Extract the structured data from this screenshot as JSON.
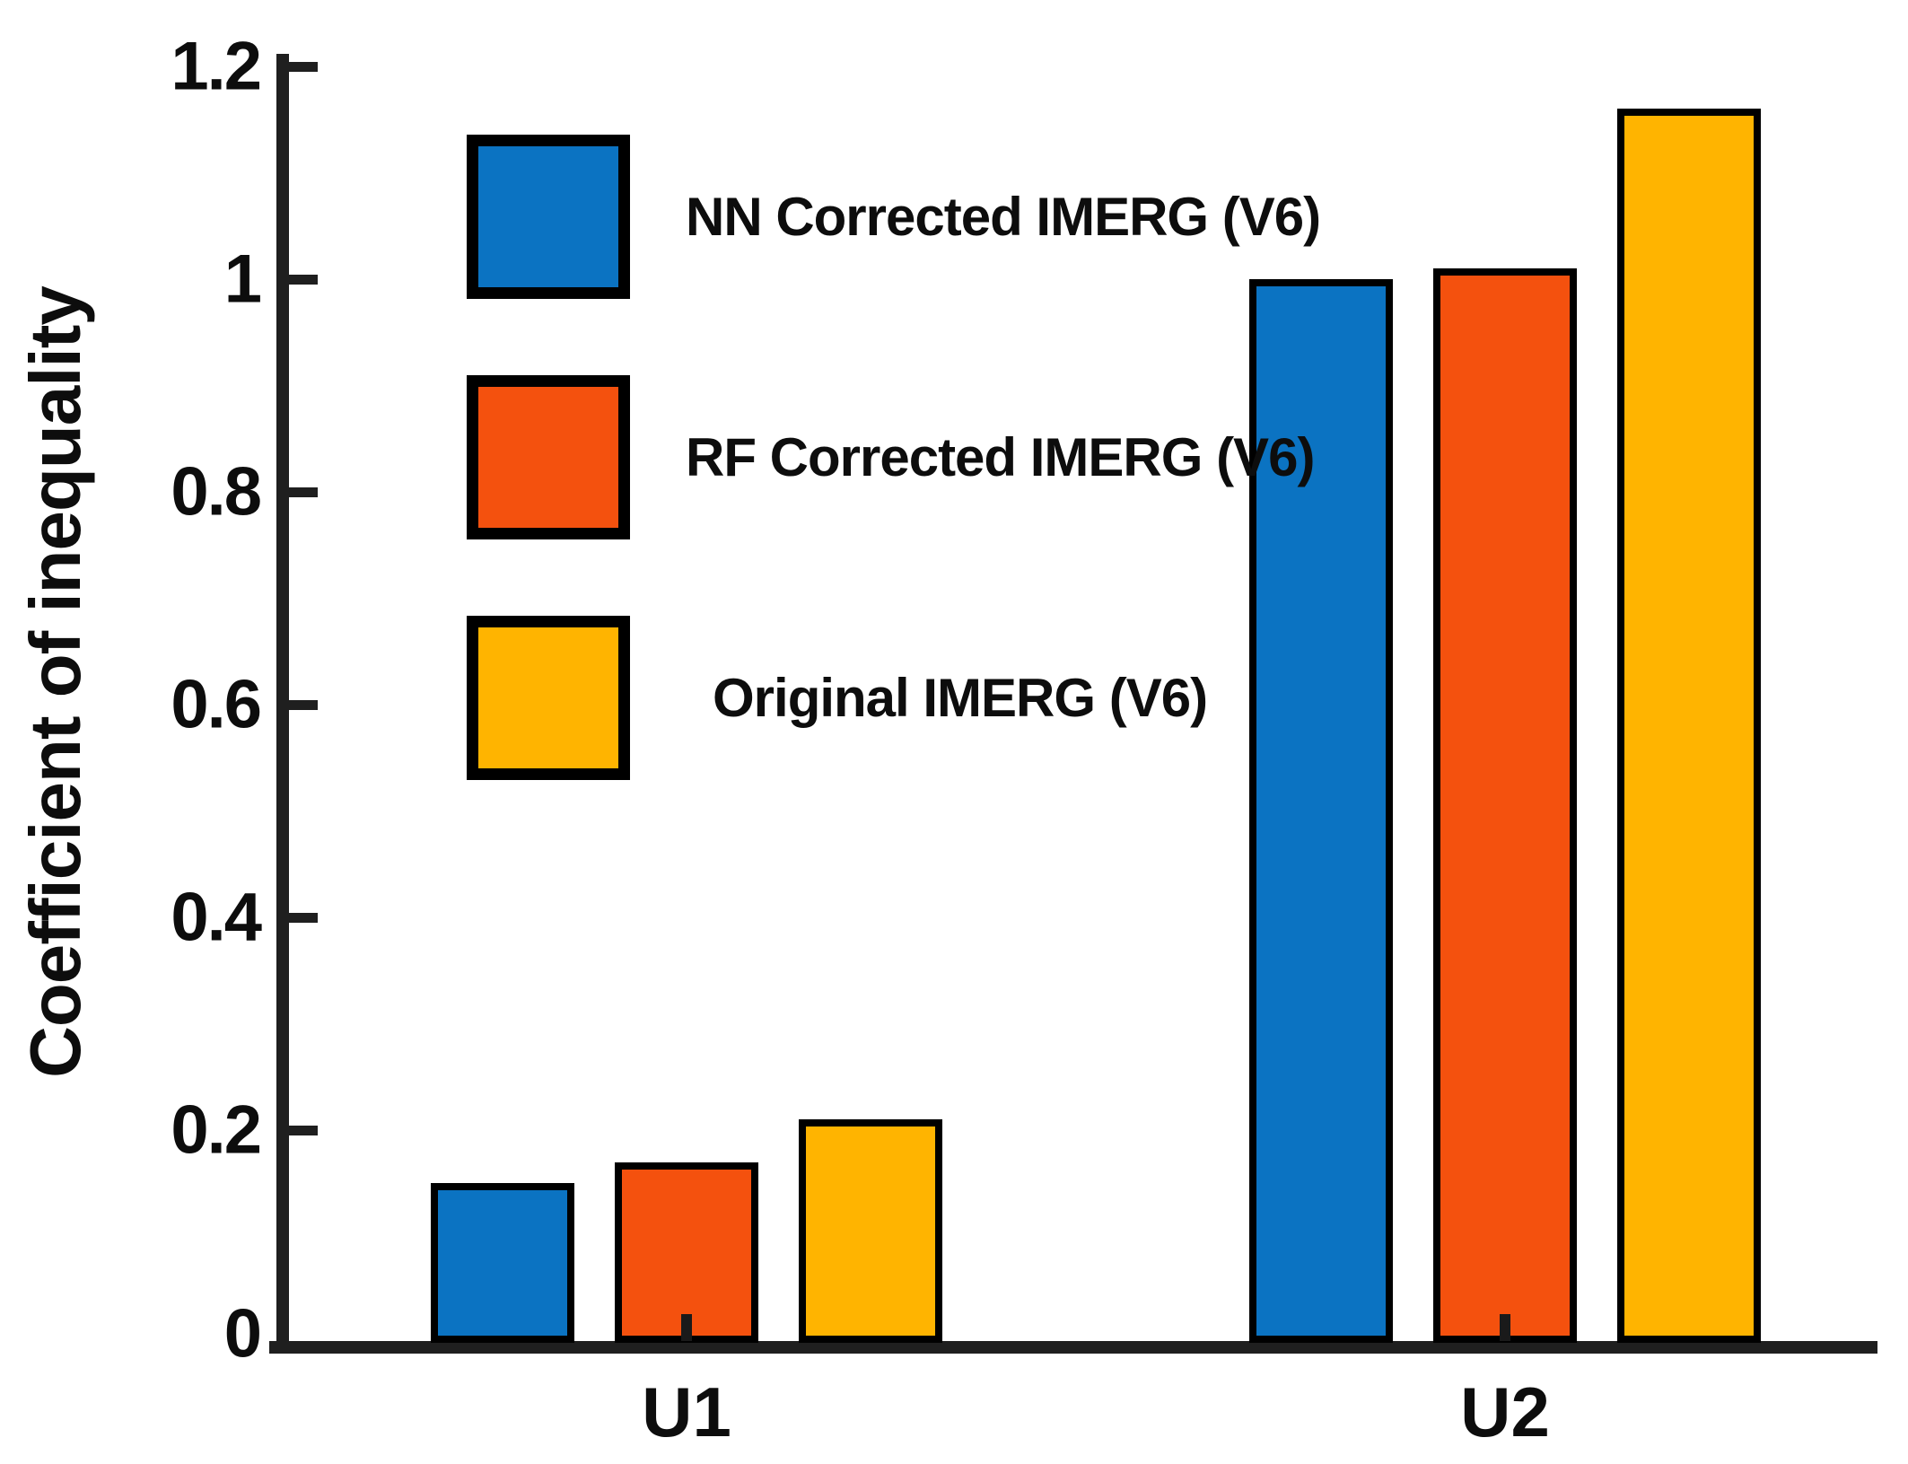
{
  "chart_data": {
    "type": "bar",
    "title": "",
    "xlabel": "",
    "ylabel": "Coefficient of inequality",
    "categories": [
      "U1",
      "U2"
    ],
    "series": [
      {
        "name": "NN Corrected IMERG (V6)",
        "color": "#0b73c2",
        "values": [
          0.15,
          1.0
        ]
      },
      {
        "name": "RF Corrected IMERG (V6)",
        "color": "#f4510e",
        "values": [
          0.17,
          1.01
        ]
      },
      {
        "name": "Original IMERG (V6)",
        "color": "#ffb400",
        "values": [
          0.21,
          1.16
        ]
      }
    ],
    "ylim": [
      0,
      1.2
    ],
    "yticks": [
      0,
      0.2,
      0.4,
      0.6,
      0.8,
      1,
      1.2
    ],
    "ytick_labels": [
      "0",
      "0.2",
      "0.4",
      "0.6",
      "0.8",
      "1",
      "1.2"
    ],
    "grid": false,
    "legend_position": "upper-left-inside",
    "bar_edge_color": "#000000",
    "axis_color": "#1f1f1f"
  }
}
